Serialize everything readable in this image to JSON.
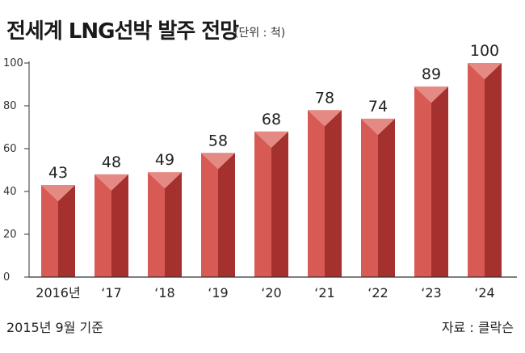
{
  "header": {
    "title": "전세계 LNG선박 발주 전망",
    "unit": "(단위 : 척)"
  },
  "footer": {
    "note": "2015년 9월 기준",
    "source": "자료 : 클락슨"
  },
  "colors": {
    "bar_front": "#d85a55",
    "bar_side": "#a4312d",
    "bar_top": "#e48983",
    "axis": "#333333"
  },
  "chart_data": {
    "type": "bar",
    "title": "전세계 LNG선박 발주 전망",
    "xlabel": "",
    "ylabel": "",
    "categories": [
      "2016년",
      "‘17",
      "‘18",
      "‘19",
      "‘20",
      "‘21",
      "‘22",
      "‘23",
      "‘24"
    ],
    "values": [
      43,
      48,
      49,
      58,
      68,
      78,
      74,
      89,
      100
    ],
    "ylim": [
      0,
      100
    ],
    "yticks": [
      "0",
      "20",
      "40",
      "60",
      "80",
      "100"
    ],
    "grid": false,
    "legend": "none"
  }
}
